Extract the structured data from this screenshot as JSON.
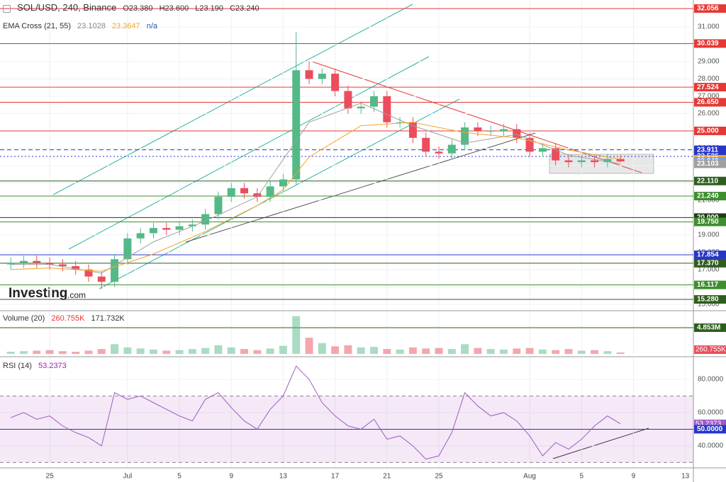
{
  "chart_data": [
    {
      "type": "candlestick",
      "title": "SOL/USD, 240, Binance",
      "ohlc_labels": [
        "O23.380",
        "H23.600",
        "L23.190",
        "C23.240"
      ],
      "indicator": "EMA Cross (21, 55)",
      "indicator_values": [
        "23.1028",
        "23.3647",
        "n/a"
      ],
      "watermark": [
        "Investing",
        ".com"
      ],
      "up_color": "#53b987",
      "down_color": "#eb4d5c",
      "x": [
        -3,
        -2,
        -1,
        0,
        1,
        2,
        3,
        4,
        5,
        6,
        7,
        8,
        9,
        10,
        11,
        12,
        13,
        14,
        15,
        16,
        17,
        18,
        19,
        20,
        21,
        22,
        23,
        24,
        25,
        26,
        27,
        28,
        29,
        30,
        31,
        32,
        33,
        34,
        35,
        36,
        37,
        38,
        39,
        40,
        41,
        42,
        43,
        44
      ],
      "open": [
        17.3,
        17.4,
        17.5,
        17.4,
        17.3,
        17.2,
        17.0,
        16.6,
        16.3,
        17.6,
        18.8,
        19.1,
        19.4,
        19.3,
        19.5,
        19.6,
        20.2,
        21.2,
        21.7,
        21.4,
        21.2,
        21.8,
        22.2,
        28.5,
        28.0,
        28.3,
        27.3,
        26.3,
        26.4,
        27.0,
        25.5,
        25.5,
        24.6,
        23.8,
        23.7,
        24.2,
        25.2,
        25.0,
        25.0,
        25.1,
        24.6,
        23.8,
        24.0,
        23.3,
        23.2,
        23.3,
        23.2,
        23.38
      ],
      "high": [
        17.7,
        17.8,
        17.8,
        17.7,
        17.6,
        17.5,
        17.3,
        16.9,
        17.9,
        19.1,
        19.4,
        19.7,
        19.7,
        19.8,
        19.9,
        20.5,
        21.5,
        22.0,
        22.0,
        21.7,
        22.1,
        22.5,
        30.7,
        29.0,
        28.6,
        28.6,
        27.6,
        26.7,
        27.3,
        27.3,
        25.8,
        25.8,
        24.9,
        24.1,
        24.5,
        25.5,
        25.5,
        25.3,
        25.4,
        25.4,
        24.9,
        24.3,
        24.3,
        23.6,
        23.6,
        23.6,
        23.68,
        23.6
      ],
      "low": [
        17.0,
        17.1,
        17.1,
        17.0,
        16.9,
        16.7,
        16.3,
        15.9,
        16.0,
        17.3,
        18.5,
        18.8,
        19.0,
        19.0,
        19.2,
        19.3,
        19.9,
        20.9,
        21.1,
        20.9,
        20.9,
        21.5,
        21.9,
        27.7,
        27.7,
        27.0,
        26.0,
        26.0,
        26.1,
        25.2,
        25.2,
        24.3,
        23.5,
        23.4,
        23.4,
        23.9,
        24.7,
        24.7,
        24.7,
        24.3,
        23.5,
        23.5,
        23.0,
        22.9,
        22.9,
        22.9,
        22.9,
        23.19
      ],
      "close": [
        17.4,
        17.5,
        17.4,
        17.3,
        17.2,
        17.0,
        16.6,
        16.3,
        17.6,
        18.8,
        19.1,
        19.4,
        19.3,
        19.5,
        19.6,
        20.2,
        21.2,
        21.7,
        21.4,
        21.2,
        21.8,
        22.2,
        28.5,
        28.0,
        28.3,
        27.3,
        26.3,
        26.4,
        27.0,
        25.5,
        25.5,
        24.6,
        23.8,
        23.7,
        24.2,
        25.2,
        25.0,
        25.0,
        25.1,
        24.6,
        23.8,
        24.0,
        23.3,
        23.2,
        23.3,
        23.2,
        23.38,
        23.24
      ],
      "series": [
        {
          "color": "#a0a0a0",
          "x": [
            -3,
            0,
            4,
            8,
            12,
            16,
            20,
            24,
            28,
            32,
            36,
            40,
            44
          ],
          "values": [
            17.3,
            17.3,
            16.8,
            18.6,
            19.8,
            21.2,
            25.5,
            26.6,
            25.3,
            24.3,
            24.8,
            23.6,
            23.103
          ]
        },
        {
          "color": "#f5a623",
          "x": [
            -3,
            0,
            4,
            8,
            12,
            16,
            18,
            20,
            24,
            28,
            32,
            36,
            40,
            44
          ],
          "values": [
            17.0,
            17.1,
            16.9,
            17.9,
            19.2,
            20.7,
            21.6,
            23.5,
            25.3,
            25.5,
            24.9,
            24.6,
            23.9,
            23.365
          ]
        }
      ],
      "levels": [
        {
          "value": 32.056,
          "label": "32.056",
          "color": "#e53935",
          "style": "solid"
        },
        {
          "value": 30.039,
          "label": "30.039",
          "color": "#e53935",
          "style": "solid"
        },
        {
          "value": 27.524,
          "label": "27.524",
          "color": "#e53935",
          "style": "solid"
        },
        {
          "value": 26.65,
          "label": "26.650",
          "color": "#e53935",
          "style": "solid"
        },
        {
          "value": 25,
          "label": "25.000",
          "color": "#e53935",
          "style": "solid"
        },
        {
          "value": 23.911,
          "label": "23.911",
          "color": "#2836c8",
          "style": "dashed"
        },
        {
          "value": 23.526,
          "label": "23.526",
          "color": "#2836c8",
          "style": "dotted"
        },
        {
          "value": 23.365,
          "label": "23.365",
          "color": "#f5a623",
          "style": "none"
        },
        {
          "value": 23.24,
          "label": "23.240",
          "color": "#6f9fe0",
          "style": "none"
        },
        {
          "value": 23.103,
          "label": "23.103",
          "color": "#a0a0a0",
          "style": "none"
        },
        {
          "value": 22.11,
          "label": "22.110",
          "color": "#2e5e1e",
          "style": "solid"
        },
        {
          "value": 21.24,
          "label": "21.240",
          "color": "#3e8e2e",
          "style": "solid"
        },
        {
          "value": 20,
          "label": "20.000",
          "color": "#1d3d14",
          "style": "solid"
        },
        {
          "value": 19.75,
          "label": "19.750",
          "color": "#3e8e2e",
          "style": "solid"
        },
        {
          "value": 17.854,
          "label": "17.854",
          "color": "#2836c8",
          "style": "solid"
        },
        {
          "value": 17.37,
          "label": "17.370",
          "color": "#2e5e1e",
          "style": "solid"
        },
        {
          "value": 16.117,
          "label": "16.117",
          "color": "#3e8e2e",
          "style": "solid"
        },
        {
          "value": 15.28,
          "label": "15.280",
          "color": "#2e5e1e",
          "style": "solid"
        }
      ],
      "xlim": [
        -3.83,
        49.62
      ],
      "ylim": [
        14.67,
        32.55
      ],
      "yticks": [
        {
          "value": 15,
          "label": "15.000"
        },
        {
          "value": 16,
          "label": "16.000"
        },
        {
          "value": 17,
          "label": "17.000"
        },
        {
          "value": 18,
          "label": "18.000"
        },
        {
          "value": 19,
          "label": "19.000"
        },
        {
          "value": 20,
          "label": "20.000"
        },
        {
          "value": 21,
          "label": "21.000"
        },
        {
          "value": 22,
          "label": "22.000"
        },
        {
          "value": 23,
          "label": "23.000"
        },
        {
          "value": 24,
          "label": "24.000"
        },
        {
          "value": 25,
          "label": "25.000"
        },
        {
          "value": 26,
          "label": "26.000"
        },
        {
          "value": 27,
          "label": "27.000"
        },
        {
          "value": 28,
          "label": "28.000"
        },
        {
          "value": 29,
          "label": "29.000"
        },
        {
          "value": 30,
          "label": "30.000"
        },
        {
          "value": 31,
          "label": "31.000"
        }
      ],
      "grid": true
    },
    {
      "type": "bar",
      "title": "Volume (20)",
      "legend_values": [
        "260.755K",
        "171.732K"
      ],
      "x": [
        -3,
        -2,
        -1,
        0,
        1,
        2,
        3,
        4,
        5,
        6,
        7,
        8,
        9,
        10,
        11,
        12,
        13,
        14,
        15,
        16,
        17,
        18,
        19,
        20,
        21,
        22,
        23,
        24,
        25,
        26,
        27,
        28,
        29,
        30,
        31,
        32,
        33,
        34,
        35,
        36,
        37,
        38,
        39,
        40,
        41,
        42,
        43,
        44
      ],
      "values": [
        400,
        500,
        600,
        700,
        500,
        400,
        600,
        900,
        1800,
        1200,
        1000,
        800,
        600,
        700,
        900,
        1100,
        1600,
        1200,
        900,
        700,
        1000,
        1500,
        7000,
        3000,
        2000,
        1400,
        1600,
        1200,
        1300,
        900,
        800,
        1200,
        1000,
        1100,
        900,
        1800,
        1100,
        900,
        800,
        1000,
        1100,
        800,
        700,
        900,
        600,
        700,
        500,
        260.755
      ],
      "last_label": "260.755K",
      "levels": [
        {
          "value": 4853,
          "label": "4.853M",
          "color": "#2e5e1e",
          "style": "solid"
        }
      ],
      "xlim": [
        -3.83,
        49.62
      ],
      "ylim": [
        0,
        7870
      ]
    },
    {
      "type": "line",
      "title": "RSI (14)",
      "legend_values": [
        "53.2373"
      ],
      "color": "#9c5bc4",
      "x": [
        -3,
        -2,
        -1,
        0,
        1,
        2,
        3,
        4,
        5,
        6,
        7,
        8,
        9,
        10,
        11,
        12,
        13,
        14,
        15,
        16,
        17,
        18,
        19,
        20,
        21,
        22,
        23,
        24,
        25,
        26,
        27,
        28,
        29,
        30,
        31,
        32,
        33,
        34,
        35,
        36,
        37,
        38,
        39,
        40,
        41,
        42,
        43,
        44
      ],
      "values": [
        57,
        60,
        56,
        58,
        52,
        48,
        45,
        40,
        72,
        68,
        70,
        66,
        62,
        58,
        55,
        68,
        72,
        63,
        55,
        50,
        62,
        70,
        88,
        80,
        66,
        58,
        52,
        50,
        56,
        44,
        46,
        40,
        32,
        34,
        48,
        72,
        64,
        58,
        60,
        55,
        46,
        34,
        42,
        38,
        44,
        52,
        58,
        53.2373
      ],
      "band": [
        30,
        70
      ],
      "levels": [
        {
          "value": 50,
          "label": "50.0000",
          "color": "#2836c8",
          "style": "solid"
        }
      ],
      "xlim": [
        -3.83,
        49.62
      ],
      "ylim": [
        27.2,
        93.2
      ],
      "yticks": [
        {
          "value": 40,
          "label": "40.0000"
        },
        {
          "value": 60,
          "label": "60.0000"
        },
        {
          "value": 80,
          "label": "80.0000"
        }
      ],
      "xticks": [
        {
          "value": 0,
          "label": "25"
        },
        {
          "value": 6,
          "label": "Jul"
        },
        {
          "value": 10,
          "label": "5"
        },
        {
          "value": 14,
          "label": "9"
        },
        {
          "value": 18,
          "label": "13"
        },
        {
          "value": 22,
          "label": "17"
        },
        {
          "value": 26,
          "label": "21"
        },
        {
          "value": 30,
          "label": "25"
        },
        {
          "value": 37,
          "label": "Aug"
        },
        {
          "value": 41,
          "label": "5"
        },
        {
          "value": 45,
          "label": "9"
        },
        {
          "value": 49,
          "label": "13"
        }
      ]
    }
  ]
}
